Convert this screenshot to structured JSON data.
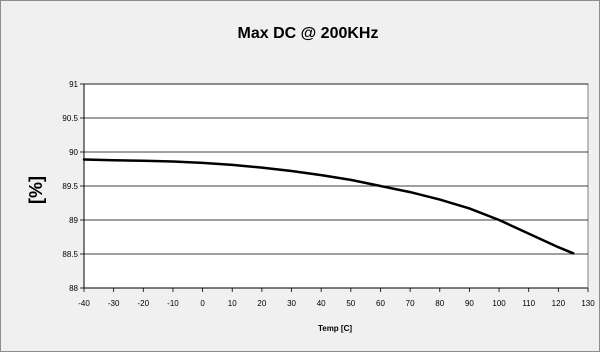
{
  "chart_data": {
    "type": "line",
    "title": "Max DC @ 200KHz",
    "xlabel": "Temp [C]",
    "ylabel": "[%]",
    "xlim": [
      -40,
      130
    ],
    "ylim": [
      88,
      91
    ],
    "x_ticks": [
      -40,
      -30,
      -20,
      -10,
      0,
      10,
      20,
      30,
      40,
      50,
      60,
      70,
      80,
      90,
      100,
      110,
      120,
      130
    ],
    "y_ticks": [
      88,
      88.5,
      89,
      89.5,
      90,
      90.5,
      91
    ],
    "grid": "horizontal",
    "legend": "none",
    "series": [
      {
        "x": [
          -40,
          -30,
          -20,
          -10,
          0,
          10,
          20,
          30,
          40,
          50,
          60,
          70,
          80,
          90,
          100,
          110,
          120,
          125
        ],
        "y": [
          89.89,
          89.88,
          89.87,
          89.86,
          89.84,
          89.81,
          89.77,
          89.72,
          89.66,
          89.59,
          89.5,
          89.41,
          89.3,
          89.17,
          89.0,
          88.8,
          88.6,
          88.51
        ],
        "color": "#000000"
      }
    ]
  }
}
